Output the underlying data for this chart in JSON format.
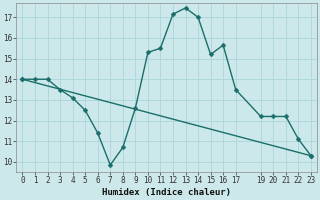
{
  "xlabel": "Humidex (Indice chaleur)",
  "bg_color": "#cce8ea",
  "grid_color": "#b0d8dc",
  "line_color": "#1a6e6a",
  "xlim": [
    -0.5,
    23.5
  ],
  "ylim": [
    9.5,
    17.7
  ],
  "yticks": [
    10,
    11,
    12,
    13,
    14,
    15,
    16,
    17
  ],
  "xticks": [
    0,
    1,
    2,
    3,
    4,
    5,
    6,
    7,
    8,
    9,
    10,
    11,
    12,
    13,
    14,
    15,
    16,
    17,
    19,
    20,
    21,
    22,
    23
  ],
  "xtick_labels": [
    "0",
    "1",
    "2",
    "3",
    "4",
    "5",
    "6",
    "7",
    "8",
    "9",
    "10",
    "11",
    "12",
    "13",
    "14",
    "15",
    "16",
    "17",
    "19",
    "20",
    "21",
    "22",
    "23"
  ],
  "line1_x": [
    0,
    1,
    2,
    3,
    4,
    5,
    6,
    7,
    8,
    9,
    10,
    11,
    12,
    13,
    14,
    15,
    16,
    17,
    19,
    20,
    21,
    22,
    23
  ],
  "line1_y": [
    14.0,
    14.0,
    14.0,
    13.5,
    13.1,
    12.5,
    11.4,
    9.85,
    10.7,
    12.6,
    15.3,
    15.5,
    17.15,
    17.45,
    17.0,
    15.2,
    15.65,
    13.5,
    12.2,
    12.2,
    12.2,
    11.1,
    10.3
  ],
  "line2_x": [
    0,
    23
  ],
  "line2_y": [
    14.0,
    10.3
  ],
  "marker_size": 2.5,
  "linewidth": 1.0,
  "tick_fontsize": 5.5,
  "xlabel_fontsize": 6.5
}
